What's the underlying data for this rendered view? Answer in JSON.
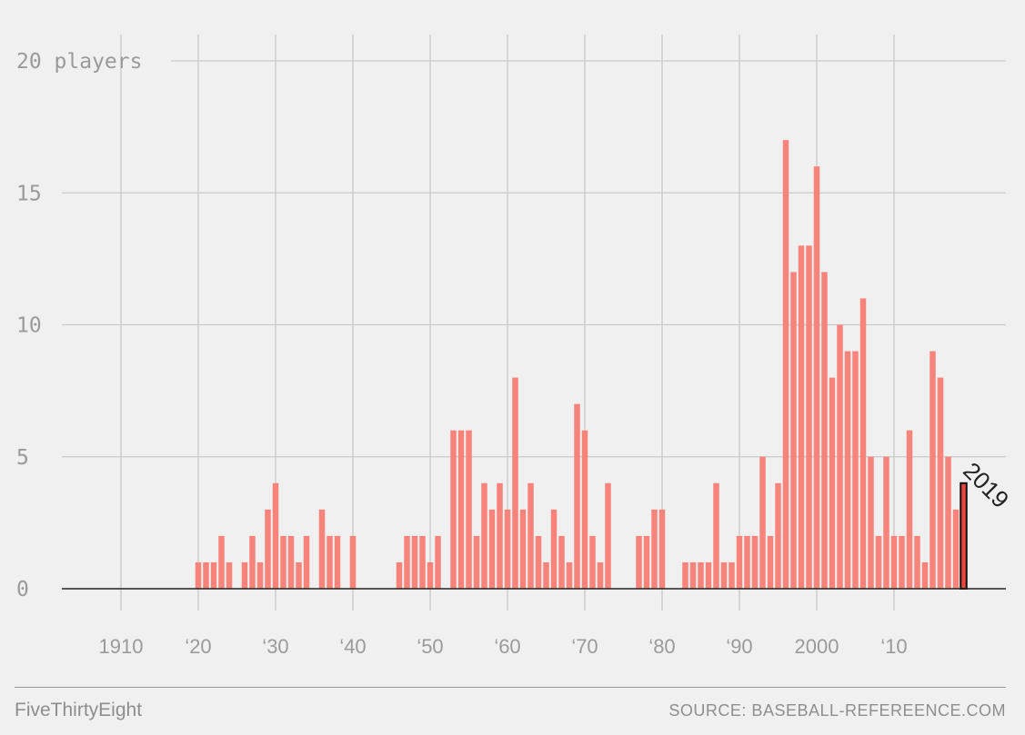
{
  "chart_data": {
    "type": "bar",
    "x_start": 1920,
    "years": [
      1920,
      1921,
      1922,
      1923,
      1924,
      1925,
      1926,
      1927,
      1928,
      1929,
      1930,
      1931,
      1932,
      1933,
      1934,
      1935,
      1936,
      1937,
      1938,
      1939,
      1940,
      1941,
      1942,
      1943,
      1944,
      1945,
      1946,
      1947,
      1948,
      1949,
      1950,
      1951,
      1952,
      1953,
      1954,
      1955,
      1956,
      1957,
      1958,
      1959,
      1960,
      1961,
      1962,
      1963,
      1964,
      1965,
      1966,
      1967,
      1968,
      1969,
      1970,
      1971,
      1972,
      1973,
      1974,
      1975,
      1976,
      1977,
      1978,
      1979,
      1980,
      1981,
      1982,
      1983,
      1984,
      1985,
      1986,
      1987,
      1988,
      1989,
      1990,
      1991,
      1992,
      1993,
      1994,
      1995,
      1996,
      1997,
      1998,
      1999,
      2000,
      2001,
      2002,
      2003,
      2004,
      2005,
      2006,
      2007,
      2008,
      2009,
      2010,
      2011,
      2012,
      2013,
      2014,
      2015,
      2016,
      2017,
      2018,
      2019
    ],
    "values": [
      1,
      1,
      1,
      2,
      1,
      0,
      1,
      2,
      1,
      3,
      4,
      2,
      2,
      1,
      2,
      0,
      3,
      2,
      2,
      0,
      2,
      0,
      0,
      0,
      0,
      0,
      1,
      2,
      2,
      2,
      1,
      2,
      0,
      6,
      6,
      6,
      2,
      4,
      3,
      4,
      3,
      8,
      3,
      4,
      2,
      1,
      3,
      2,
      1,
      7,
      6,
      2,
      1,
      4,
      0,
      0,
      0,
      2,
      2,
      3,
      3,
      0,
      0,
      1,
      1,
      1,
      1,
      4,
      1,
      1,
      2,
      2,
      2,
      5,
      2,
      4,
      17,
      12,
      13,
      13,
      16,
      12,
      8,
      10,
      9,
      9,
      11,
      5,
      2,
      5,
      2,
      2,
      6,
      2,
      1,
      9,
      8,
      5,
      3,
      4
    ],
    "highlight": {
      "year": 2019,
      "label": "2019"
    },
    "x_ticks": [
      {
        "year": 1910,
        "label": "1910"
      },
      {
        "year": 1920,
        "label": "‘20"
      },
      {
        "year": 1930,
        "label": "‘30"
      },
      {
        "year": 1940,
        "label": "‘40"
      },
      {
        "year": 1950,
        "label": "‘50"
      },
      {
        "year": 1960,
        "label": "‘60"
      },
      {
        "year": 1970,
        "label": "‘70"
      },
      {
        "year": 1980,
        "label": "‘80"
      },
      {
        "year": 1990,
        "label": "‘90"
      },
      {
        "year": 2000,
        "label": "2000"
      },
      {
        "year": 2010,
        "label": "‘10"
      }
    ],
    "y_ticks": [
      {
        "value": 0,
        "label": "0"
      },
      {
        "value": 5,
        "label": "5"
      },
      {
        "value": 10,
        "label": "10"
      },
      {
        "value": 15,
        "label": "15"
      },
      {
        "value": 20,
        "label": "20 players"
      }
    ],
    "xlim": [
      1902,
      2022
    ],
    "ylim": [
      0,
      20
    ],
    "grid": true,
    "colors": {
      "bar": "#f8837b",
      "highlight": "#e8473d",
      "axis": "#222222",
      "grid": "#c9c9c9"
    }
  },
  "footer": {
    "brand": "FiveThirtyEight",
    "source": "SOURCE: BASEBALL-REFEREENCE.COM"
  }
}
